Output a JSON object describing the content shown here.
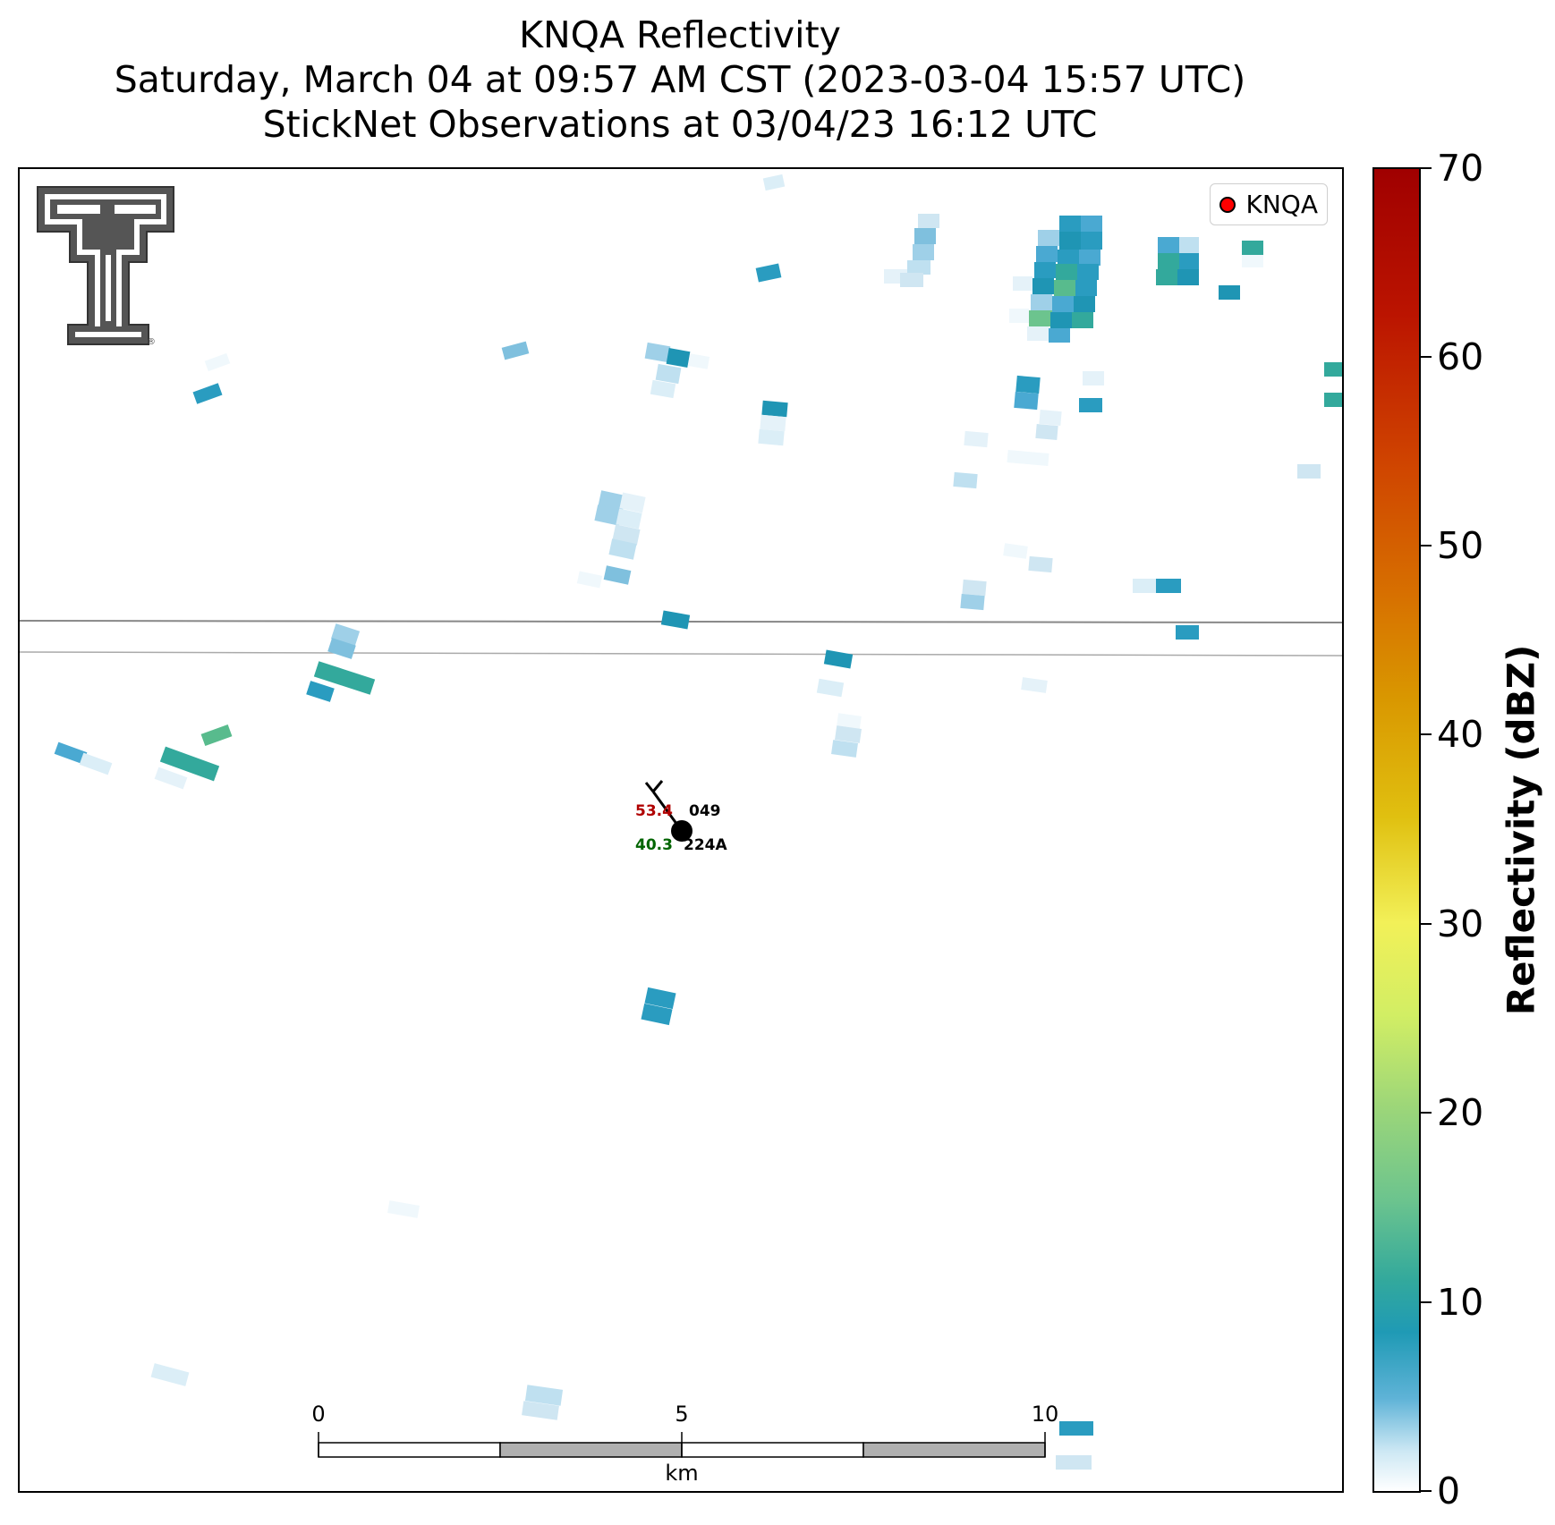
{
  "title": {
    "line1": "KNQA Reflectivity",
    "line2": "Saturday, March 04 at 09:57 AM CST (2023-03-04 15:57 UTC)",
    "line3": "StickNet Observations at 03/04/23 16:12 UTC"
  },
  "legend": {
    "label": "KNQA",
    "marker_color": "#ff0000"
  },
  "colorbar": {
    "label": "Reflectivity (dBZ)",
    "ticks": [
      "0",
      "10",
      "20",
      "30",
      "40",
      "50",
      "60",
      "70"
    ],
    "range": [
      0,
      70
    ]
  },
  "station": {
    "id": "224A",
    "direction": "049",
    "temperature": "53.4",
    "dewpoint": "40.3",
    "temperature_color": "#b00000",
    "dewpoint_color": "#006400"
  },
  "scale_bar": {
    "labels": [
      "0",
      "5",
      "10"
    ],
    "unit": "km"
  },
  "logo": {
    "name": "texas-tech-double-t-logo",
    "mark": "®"
  }
}
